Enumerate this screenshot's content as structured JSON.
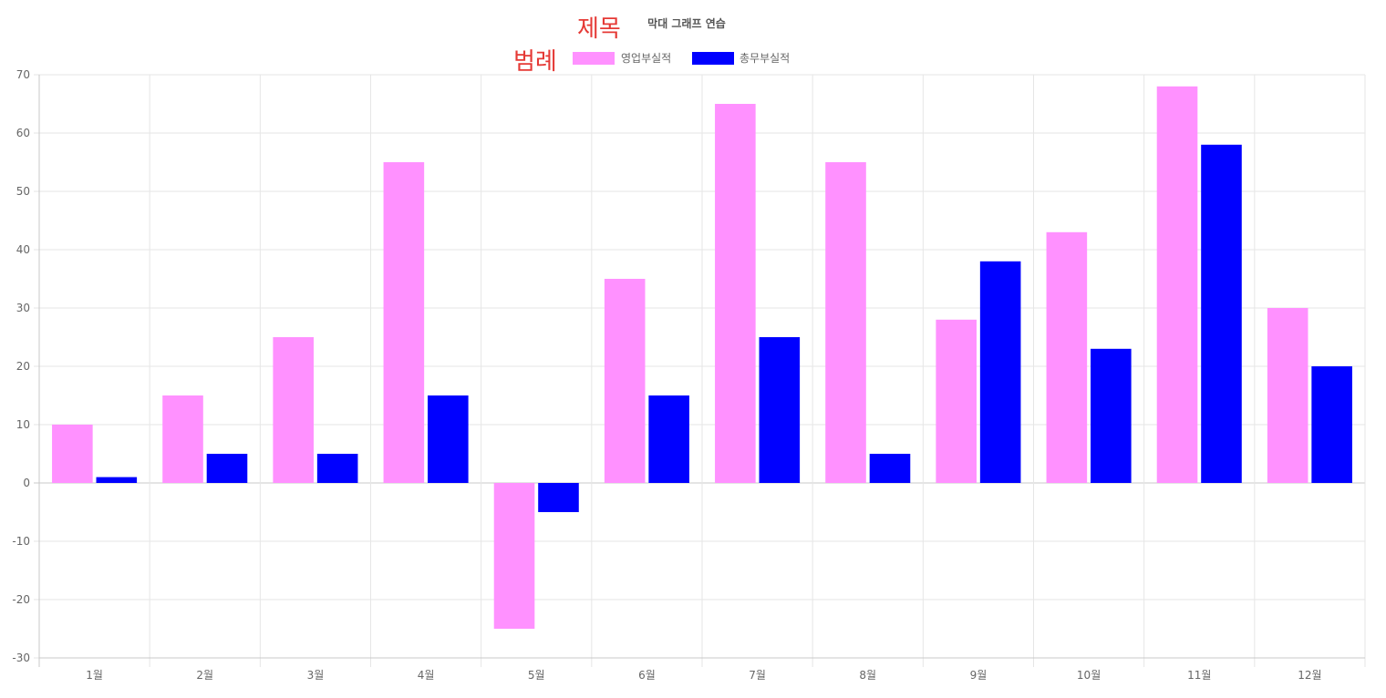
{
  "annotations": {
    "title_handwritten": "제목",
    "legend_handwritten": "범례"
  },
  "chart_data": {
    "type": "bar",
    "title": "막대 그래프 연습",
    "categories": [
      "1월",
      "2월",
      "3월",
      "4월",
      "5월",
      "6월",
      "7월",
      "8월",
      "9월",
      "10월",
      "11월",
      "12월"
    ],
    "series": [
      {
        "name": "영업부실적",
        "color": "#ff91ff",
        "values": [
          10,
          15,
          25,
          55,
          -25,
          35,
          65,
          55,
          28,
          43,
          68,
          30
        ]
      },
      {
        "name": "총무부실적",
        "color": "#0000ff",
        "values": [
          1,
          5,
          5,
          15,
          -5,
          15,
          25,
          5,
          38,
          23,
          58,
          20
        ]
      }
    ],
    "ylim": [
      -30,
      70
    ],
    "yticks": [
      70,
      60,
      50,
      40,
      30,
      20,
      10,
      0,
      -10,
      -20,
      -30
    ],
    "grid": true,
    "legend_position": "top-center"
  }
}
